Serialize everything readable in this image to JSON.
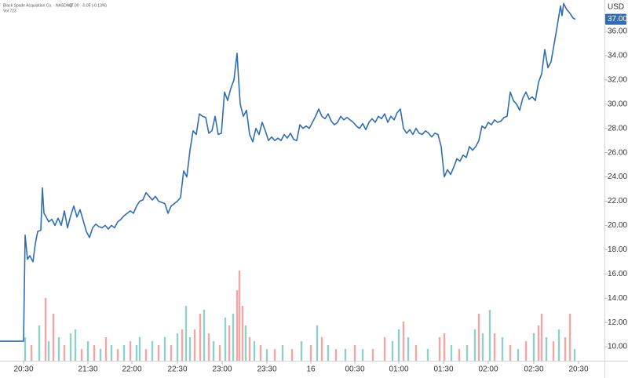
{
  "chart_data": {
    "type": "line",
    "title": "Black Spade Acquisition Co. · NASDAQ",
    "last_price_text": "37.00",
    "change_text": "-0.05 (-0.13%)",
    "subtitle": "Vol 723",
    "currency": "USD",
    "last_price": {
      "value": 37,
      "label": "37.00"
    },
    "xlim": [
      0,
      770
    ],
    "ylim": [
      8.84,
      38.59
    ],
    "y2lim": [
      0,
      460
    ],
    "grid": false,
    "xticks": [
      {
        "value": 30,
        "label": "20:30"
      },
      {
        "value": 112,
        "label": "21:30"
      },
      {
        "value": 168,
        "label": "22:00"
      },
      {
        "value": 226,
        "label": "22:30"
      },
      {
        "value": 283,
        "label": "23:00"
      },
      {
        "value": 340,
        "label": "23:30"
      },
      {
        "value": 396,
        "label": "16"
      },
      {
        "value": 452,
        "label": "00:30"
      },
      {
        "value": 508,
        "label": "01:00"
      },
      {
        "value": 565,
        "label": "01:30"
      },
      {
        "value": 622,
        "label": "02:00"
      },
      {
        "value": 680,
        "label": "02:30"
      },
      {
        "value": 737,
        "label": "20:30"
      }
    ],
    "yticks": [
      {
        "value": 10,
        "label": "10.00"
      },
      {
        "value": 12,
        "label": "12.00"
      },
      {
        "value": 14,
        "label": "14.00"
      },
      {
        "value": 16,
        "label": "16.00"
      },
      {
        "value": 18,
        "label": "18.00"
      },
      {
        "value": 20,
        "label": "20.00"
      },
      {
        "value": 22,
        "label": "22.00"
      },
      {
        "value": 24,
        "label": "24.00"
      },
      {
        "value": 26,
        "label": "26.00"
      },
      {
        "value": 28,
        "label": "28.00"
      },
      {
        "value": 30,
        "label": "30.00"
      },
      {
        "value": 32,
        "label": "32.00"
      },
      {
        "value": 34,
        "label": "34.00"
      },
      {
        "value": 36,
        "label": "36.00"
      }
    ],
    "series": [
      {
        "color": "#2f6eb5",
        "x": [
          0,
          30,
          32,
          35,
          38,
          42,
          45,
          48,
          52,
          54,
          56,
          58,
          62,
          66,
          70,
          74,
          78,
          82,
          86,
          90,
          94,
          98,
          102,
          106,
          110,
          114,
          118,
          122,
          126,
          130,
          134,
          138,
          142,
          146,
          150,
          154,
          158,
          162,
          166,
          170,
          174,
          178,
          182,
          186,
          190,
          194,
          198,
          202,
          206,
          210,
          214,
          218,
          222,
          226,
          230,
          234,
          238,
          242,
          246,
          250,
          254,
          258,
          262,
          266,
          270,
          274,
          278,
          282,
          286,
          290,
          294,
          298,
          302,
          304,
          306,
          310,
          314,
          318,
          322,
          326,
          330,
          334,
          338,
          342,
          346,
          350,
          354,
          358,
          362,
          366,
          370,
          374,
          378,
          382,
          386,
          390,
          394,
          398,
          402,
          406,
          410,
          414,
          418,
          422,
          426,
          430,
          434,
          438,
          442,
          446,
          450,
          454,
          458,
          462,
          466,
          470,
          474,
          478,
          482,
          486,
          490,
          494,
          498,
          502,
          506,
          510,
          514,
          518,
          522,
          526,
          530,
          534,
          538,
          542,
          546,
          550,
          554,
          558,
          562,
          566,
          570,
          574,
          578,
          582,
          586,
          590,
          594,
          598,
          602,
          606,
          610,
          614,
          618,
          622,
          626,
          630,
          634,
          638,
          642,
          646,
          650,
          654,
          658,
          662,
          666,
          670,
          674,
          678,
          682,
          686,
          690,
          694,
          698,
          702,
          706,
          710,
          714,
          716,
          718,
          722,
          726,
          730,
          733
        ],
        "values": [
          10.45,
          10.45,
          19.2,
          17.2,
          17.5,
          17.0,
          18.5,
          19.5,
          19.6,
          23.1,
          21.0,
          20.8,
          20.3,
          20.5,
          20.0,
          20.6,
          20.0,
          21.2,
          19.8,
          20.8,
          21.6,
          20.7,
          21.3,
          20.4,
          19.5,
          19.0,
          19.8,
          20.1,
          19.9,
          19.8,
          20.0,
          19.7,
          20.0,
          19.8,
          20.3,
          20.5,
          20.8,
          21.0,
          21.2,
          21.0,
          21.6,
          22.0,
          22.1,
          22.7,
          22.4,
          22.1,
          22.4,
          22.0,
          21.9,
          21.8,
          21.0,
          21.6,
          21.8,
          22.0,
          22.3,
          24.5,
          24.0,
          26.2,
          27.8,
          27.5,
          29.2,
          29.0,
          28.9,
          27.6,
          27.8,
          29.0,
          27.5,
          27.6,
          31.0,
          30.3,
          31.3,
          32.0,
          34.2,
          32.0,
          30.0,
          29.0,
          29.5,
          27.5,
          26.9,
          28.0,
          27.5,
          28.5,
          27.8,
          27.0,
          27.3,
          27.0,
          27.2,
          27.0,
          27.5,
          27.2,
          27.6,
          27.1,
          27.0,
          28.3,
          28.0,
          28.2,
          28.0,
          28.5,
          29.0,
          29.6,
          29.0,
          28.8,
          29.2,
          28.6,
          28.3,
          28.5,
          29.0,
          28.7,
          28.9,
          28.7,
          28.5,
          28.2,
          28.0,
          28.4,
          27.9,
          28.5,
          28.8,
          28.5,
          29.0,
          28.8,
          29.2,
          28.5,
          29.0,
          28.7,
          29.3,
          29.6,
          28.0,
          27.6,
          27.9,
          27.5,
          28.0,
          27.6,
          27.5,
          27.8,
          27.6,
          27.3,
          27.6,
          27.5,
          26.5,
          24.0,
          24.6,
          24.2,
          24.8,
          25.5,
          25.3,
          25.8,
          25.6,
          26.5,
          26.2,
          26.5,
          27.0,
          28.2,
          28.0,
          28.5,
          28.3,
          28.7,
          28.5,
          28.6,
          28.9,
          29.0,
          31.0,
          30.3,
          30.0,
          29.5,
          30.5,
          31.0,
          30.4,
          30.6,
          30.3,
          31.8,
          32.5,
          34.5,
          33.0,
          33.5,
          35.0,
          36.5,
          38.1,
          37.3,
          38.3,
          37.8,
          37.5,
          37.1,
          37.0
        ]
      }
    ],
    "volume": {
      "axis": "y2",
      "x": [
        32,
        40,
        50,
        58,
        62,
        68,
        75,
        82,
        90,
        96,
        104,
        112,
        120,
        128,
        135,
        142,
        150,
        158,
        166,
        174,
        178,
        186,
        194,
        202,
        210,
        218,
        226,
        232,
        237,
        242,
        248,
        255,
        260,
        266,
        272,
        280,
        287,
        292,
        297,
        302,
        305,
        309,
        313,
        318,
        324,
        332,
        340,
        350,
        360,
        372,
        384,
        396,
        404,
        410,
        418,
        428,
        440,
        452,
        462,
        475,
        490,
        500,
        508,
        514,
        520,
        530,
        545,
        560,
        566,
        575,
        585,
        595,
        605,
        610,
        615,
        624,
        630,
        640,
        650,
        660,
        670,
        680,
        686,
        690,
        696,
        705,
        712,
        720,
        726,
        732
      ],
      "values": [
        30,
        20,
        45,
        80,
        25,
        60,
        30,
        20,
        35,
        40,
        15,
        25,
        20,
        15,
        30,
        20,
        15,
        20,
        25,
        20,
        30,
        15,
        25,
        20,
        30,
        20,
        35,
        40,
        70,
        30,
        40,
        60,
        65,
        35,
        25,
        20,
        55,
        45,
        60,
        90,
        115,
        70,
        45,
        30,
        25,
        20,
        15,
        15,
        20,
        15,
        25,
        20,
        45,
        30,
        20,
        15,
        15,
        20,
        15,
        15,
        30,
        25,
        40,
        50,
        30,
        20,
        15,
        30,
        35,
        20,
        15,
        20,
        40,
        60,
        35,
        65,
        35,
        30,
        20,
        15,
        25,
        35,
        45,
        60,
        30,
        25,
        40,
        30,
        60,
        15
      ],
      "colors": [
        "#8fd0c8",
        "#f2a7a5",
        "#8fd0c8",
        "#f2a7a5",
        "#8fd0c8",
        "#f2a7a5",
        "#8fd0c8",
        "#f2a7a5",
        "#8fd0c8",
        "#8fd0c8",
        "#f2a7a5",
        "#8fd0c8",
        "#f2a7a5",
        "#8fd0c8",
        "#f2a7a5",
        "#8fd0c8",
        "#f2a7a5",
        "#8fd0c8",
        "#f2a7a5",
        "#8fd0c8",
        "#8fd0c8",
        "#f2a7a5",
        "#8fd0c8",
        "#f2a7a5",
        "#8fd0c8",
        "#f2a7a5",
        "#8fd0c8",
        "#f2a7a5",
        "#8fd0c8",
        "#8fd0c8",
        "#f2a7a5",
        "#f2a7a5",
        "#8fd0c8",
        "#f2a7a5",
        "#8fd0c8",
        "#f2a7a5",
        "#8fd0c8",
        "#f2a7a5",
        "#8fd0c8",
        "#f2a7a5",
        "#f2a7a5",
        "#f2a7a5",
        "#8fd0c8",
        "#f2a7a5",
        "#8fd0c8",
        "#f2a7a5",
        "#8fd0c8",
        "#f2a7a5",
        "#8fd0c8",
        "#f2a7a5",
        "#8fd0c8",
        "#f2a7a5",
        "#8fd0c8",
        "#f2a7a5",
        "#8fd0c8",
        "#f2a7a5",
        "#8fd0c8",
        "#f2a7a5",
        "#8fd0c8",
        "#f2a7a5",
        "#f2a7a5",
        "#8fd0c8",
        "#8fd0c8",
        "#f2a7a5",
        "#8fd0c8",
        "#f2a7a5",
        "#8fd0c8",
        "#f2a7a5",
        "#f2a7a5",
        "#8fd0c8",
        "#f2a7a5",
        "#8fd0c8",
        "#8fd0c8",
        "#f2a7a5",
        "#8fd0c8",
        "#8fd0c8",
        "#f2a7a5",
        "#8fd0c8",
        "#f2a7a5",
        "#8fd0c8",
        "#f2a7a5",
        "#8fd0c8",
        "#f2a7a5",
        "#f2a7a5",
        "#8fd0c8",
        "#f2a7a5",
        "#8fd0c8",
        "#f2a7a5",
        "#f2a7a5",
        "#8fd0c8"
      ]
    }
  }
}
